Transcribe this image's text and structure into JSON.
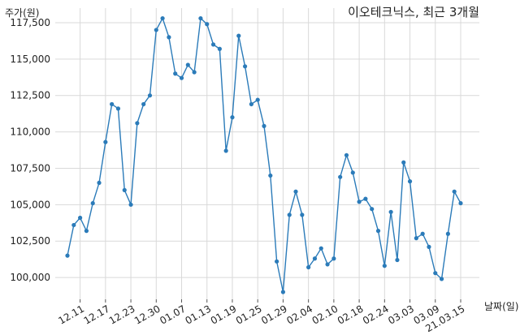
{
  "chart_data": {
    "type": "line",
    "title": "이오테크닉스, 최근 3개월",
    "ylabel": "주가(원)",
    "xlabel": "날짜(일)",
    "ylim": [
      98500,
      118500
    ],
    "yticks": [
      100000,
      102500,
      105000,
      107500,
      110000,
      112500,
      115000,
      117500
    ],
    "ytick_labels": [
      "100,000",
      "102,500",
      "105,000",
      "107,500",
      "110,000",
      "112,500",
      "115,000",
      "117,500"
    ],
    "xtick_labels": [
      "12.11",
      "12.17",
      "12.23",
      "12.30",
      "01.07",
      "01.13",
      "01.19",
      "01.25",
      "01.29",
      "02.04",
      "02.10",
      "02.18",
      "02.24",
      "03.03",
      "03.09",
      "21.03.15"
    ],
    "xtick_positions": [
      2,
      6,
      10,
      14,
      18,
      22,
      26,
      30,
      34,
      38,
      42,
      46,
      50,
      54,
      58,
      62
    ],
    "grid": true,
    "line_color": "#2b7bb9",
    "series": [
      {
        "values": [
          101500,
          103600,
          104100,
          103200,
          105100,
          106500,
          109300,
          111900,
          111600,
          106000,
          105000,
          110600,
          111900,
          112500,
          117000,
          117800,
          116500,
          114000,
          113700,
          114600,
          114100,
          117800,
          117400,
          116000,
          115700,
          108700,
          111000,
          116600,
          114500,
          111900,
          112200,
          110400,
          107000,
          101100,
          99000,
          104300,
          105900,
          104300,
          100700,
          101300,
          102000,
          100900,
          101300,
          106900,
          108400,
          107200,
          105200,
          105400,
          104700,
          103200,
          100800,
          104500,
          101200,
          107900,
          106600,
          102700,
          103000,
          102100,
          100300,
          99900,
          103000,
          105900,
          105100
        ]
      }
    ]
  }
}
